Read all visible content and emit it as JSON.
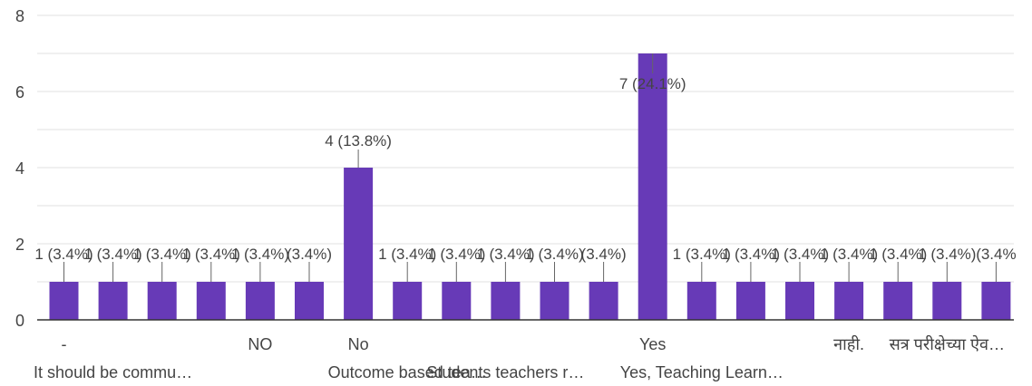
{
  "chart_data": {
    "type": "bar",
    "categories": [
      "-",
      "It should be commu…",
      "",
      "",
      "NO",
      "",
      "No",
      "Outcome based tea…",
      "",
      "Students teachers r…",
      "",
      "",
      "Yes",
      "Yes, Teaching Learn…",
      "",
      "",
      "नाही.",
      "",
      "सत्र परीक्षेच्या ऐव…",
      ""
    ],
    "values": [
      1,
      1,
      1,
      1,
      1,
      1,
      4,
      1,
      1,
      1,
      1,
      1,
      7,
      1,
      1,
      1,
      1,
      1,
      1,
      1
    ],
    "data_labels": [
      "1 (3.4%)",
      "1 (3.4%)",
      "1 (3.4%)",
      "1 (3.4%)",
      "1 (3.4%)",
      "(3.4%)",
      "4 (13.8%)",
      "1 (3.4%)",
      "1 (3.4%)",
      "1 (3.4%)",
      "1 (3.4%)",
      "(3.4%)",
      "7 (24.1%)",
      "1 (3.4%)",
      "1 (3.4%)",
      "1 (3.4%)",
      "1 (3.4%)",
      "1 (3.4%)",
      "1 (3.4%)",
      "(3.4%"
    ],
    "y_ticks": [
      "0",
      "2",
      "4",
      "6",
      "8"
    ],
    "ylim": [
      0,
      8
    ],
    "grid": true,
    "bar_color": "#673ab7",
    "axis_color": "#333333",
    "grid_color": "#e0e0e0",
    "label_color": "#444444"
  }
}
